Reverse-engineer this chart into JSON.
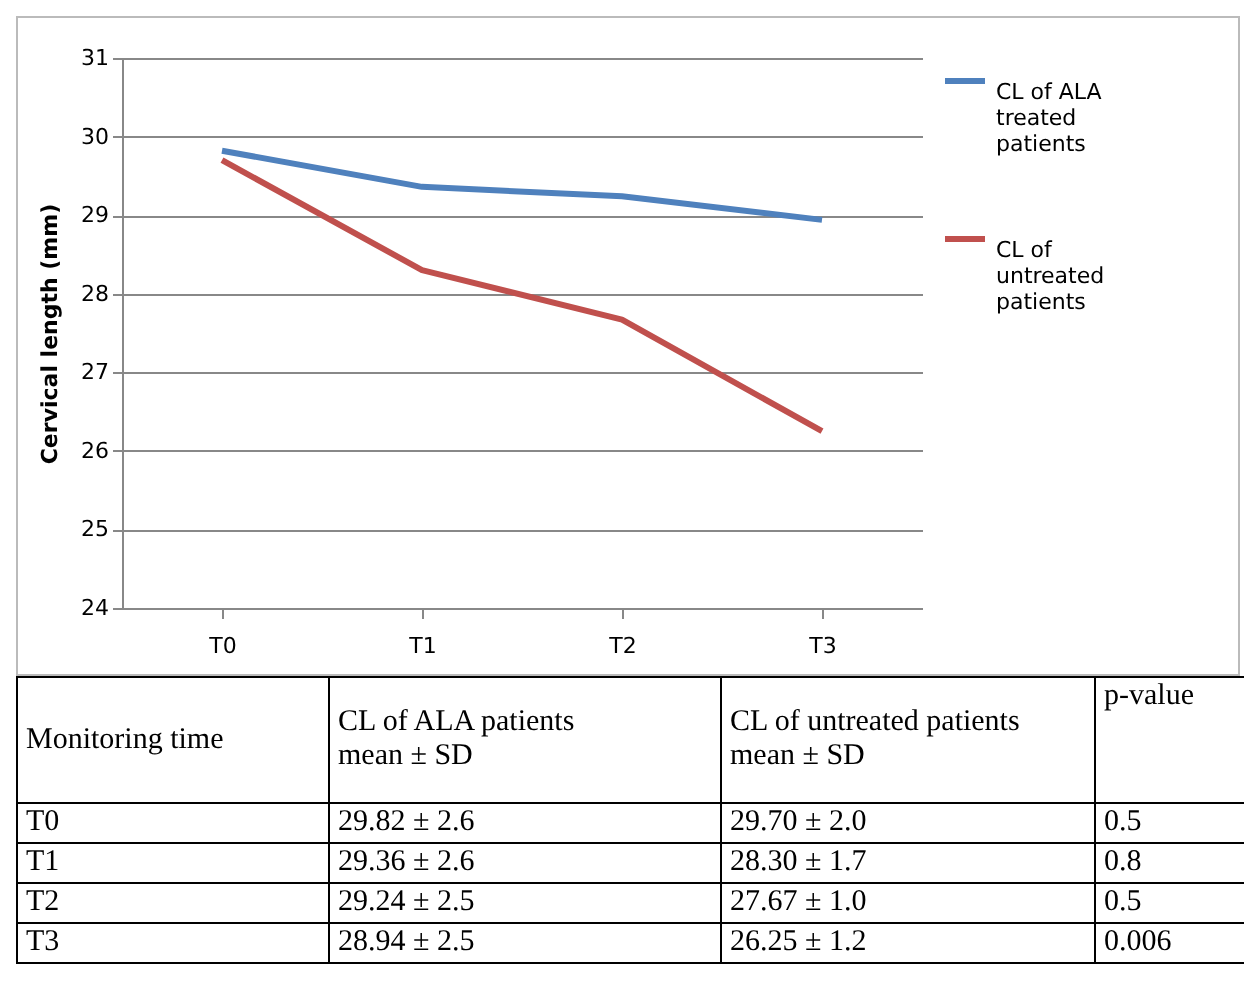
{
  "chart_data": {
    "type": "line",
    "ylabel": "Cervical length (mm)",
    "categories": [
      "T0",
      "T1",
      "T2",
      "T3"
    ],
    "series": [
      {
        "name": "CL of ALA treated patients",
        "color": "#4f81bd",
        "values": [
          29.82,
          29.36,
          29.24,
          28.94
        ]
      },
      {
        "name": "CL of untreated patients",
        "color": "#c0504d",
        "values": [
          29.7,
          28.3,
          27.67,
          26.25
        ]
      }
    ],
    "ylim": [
      24,
      31
    ],
    "yticks": [
      24,
      25,
      26,
      27,
      28,
      29,
      30,
      31
    ],
    "grid": "y",
    "legend": "right",
    "annotations": [
      "Monitoring time",
      "CL of ALA patients mean ± SD",
      "CL of untreated patients mean ± SD",
      "p-value",
      "29.82 ± 2.6",
      "29.70 ± 2.0",
      "0.5",
      "29.36 ± 2.6",
      "28.30 ± 1.7",
      "0.8",
      "29.24 ± 2.5",
      "27.67 ± 1.0",
      "0.5",
      "28.94 ± 2.5",
      "26.25 ± 1.2",
      "0.006"
    ]
  }
}
